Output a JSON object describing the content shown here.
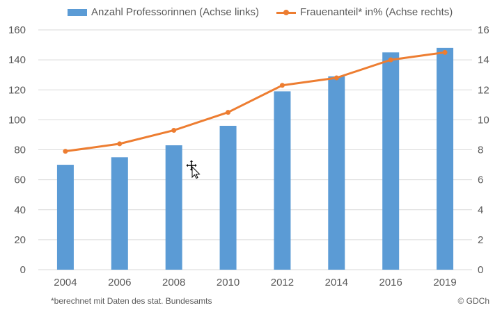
{
  "legend": {
    "bars_label": "Anzahl Professorinnen (Achse links)",
    "line_label": "Frauenanteil* in% (Achse rechts)"
  },
  "footnote": "*berechnet mit Daten des stat. Bundesamts",
  "credit": "© GDCh",
  "colors": {
    "bars": "#5b9bd5",
    "line": "#ed7d31",
    "grid": "#d9d9d9",
    "text": "#595959"
  },
  "icons": {
    "cursor": "move-cursor-icon"
  },
  "chart_data": {
    "type": "bar",
    "categories": [
      "2004",
      "2006",
      "2008",
      "2010",
      "2012",
      "2014",
      "2016",
      "2019"
    ],
    "series": [
      {
        "name": "Anzahl Professorinnen (Achse links)",
        "type": "bar",
        "axis": "left",
        "values": [
          70,
          75,
          83,
          96,
          119,
          129,
          145,
          148
        ]
      },
      {
        "name": "Frauenanteil* in% (Achse rechts)",
        "type": "line",
        "axis": "right",
        "values": [
          7.9,
          8.4,
          9.3,
          10.5,
          12.3,
          12.8,
          14.0,
          14.5
        ]
      }
    ],
    "y_left": {
      "ylim": [
        0,
        160
      ],
      "ticks": [
        "0",
        "20",
        "40",
        "60",
        "80",
        "100",
        "120",
        "140",
        "160"
      ]
    },
    "y_right": {
      "ylim": [
        0,
        16
      ],
      "ticks": [
        "0",
        "2",
        "4",
        "6",
        "8",
        "10",
        "12",
        "14",
        "16"
      ]
    },
    "grid": true,
    "legend_position": "top"
  }
}
